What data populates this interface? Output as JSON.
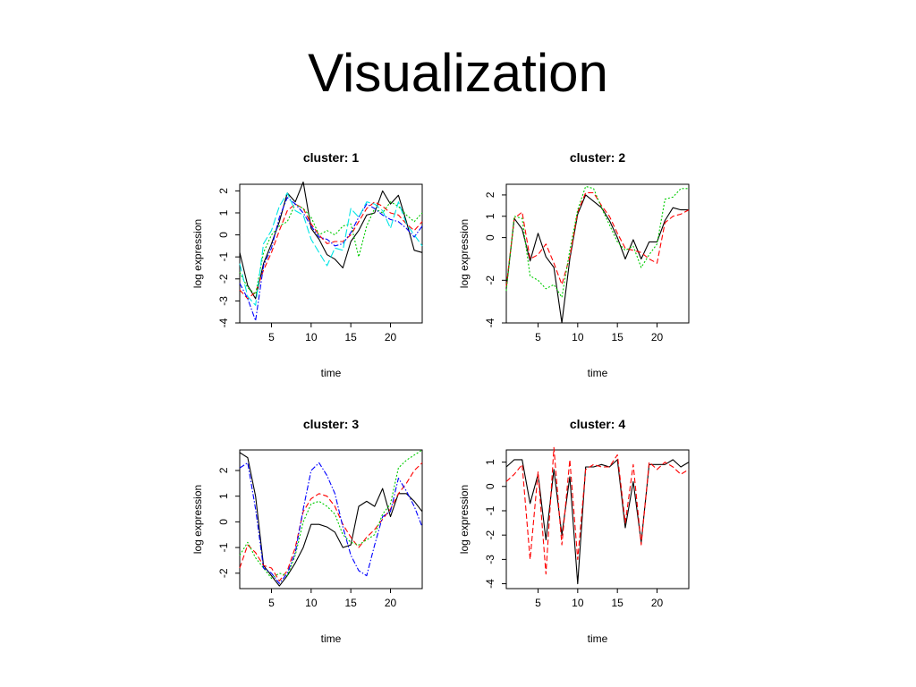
{
  "slide": {
    "title": "Visualization"
  },
  "chart_data": [
    {
      "type": "line",
      "title": "cluster: 1",
      "xlabel": "time",
      "ylabel": "log expression",
      "xlim": [
        1,
        24
      ],
      "ylim": [
        -4,
        2.3
      ],
      "xticks": [
        5,
        10,
        15,
        20
      ],
      "yticks": [
        -4,
        -3,
        -2,
        -1,
        0,
        1,
        2
      ],
      "x": [
        1,
        2,
        3,
        4,
        5,
        6,
        7,
        8,
        9,
        10,
        11,
        12,
        13,
        14,
        15,
        16,
        17,
        18,
        19,
        20,
        21,
        22,
        23,
        24
      ],
      "series": [
        {
          "color": "#000000",
          "dash": "solid",
          "values": [
            -0.8,
            -2.3,
            -2.9,
            -1.3,
            -0.4,
            0.6,
            1.9,
            1.5,
            2.4,
            0.3,
            -0.2,
            -0.9,
            -1.1,
            -1.5,
            -0.3,
            0.2,
            0.9,
            1.0,
            2.0,
            1.4,
            1.8,
            0.6,
            -0.7,
            -0.8
          ]
        },
        {
          "color": "#ff0000",
          "dash": "dashed",
          "values": [
            -2.5,
            -2.9,
            -2.6,
            -1.6,
            -0.8,
            0.2,
            1.1,
            1.4,
            1.2,
            0.5,
            0.0,
            -0.4,
            -0.3,
            -0.3,
            0.0,
            0.6,
            1.2,
            1.5,
            1.3,
            1.0,
            0.9,
            0.5,
            0.2,
            0.6
          ]
        },
        {
          "color": "#00cc00",
          "dash": "dotted",
          "values": [
            -1.7,
            -2.4,
            -2.7,
            -0.8,
            0.0,
            0.4,
            0.6,
            1.4,
            1.2,
            0.8,
            0.0,
            0.2,
            0.0,
            0.4,
            0.5,
            -1.0,
            0.4,
            1.2,
            1.0,
            1.5,
            1.3,
            0.9,
            0.6,
            1.0
          ]
        },
        {
          "color": "#0000ff",
          "dash": "dashdot",
          "values": [
            -2.2,
            -2.9,
            -3.9,
            -1.4,
            -0.6,
            0.8,
            1.7,
            1.4,
            1.0,
            0.4,
            -0.1,
            -0.2,
            -0.5,
            -0.4,
            0.1,
            0.8,
            1.4,
            1.2,
            0.9,
            0.7,
            0.6,
            0.3,
            -0.1,
            0.4
          ]
        },
        {
          "color": "#00e5e5",
          "dash": "longdash",
          "values": [
            -1.3,
            -2.8,
            -3.2,
            -0.4,
            0.2,
            1.3,
            1.9,
            1.1,
            0.9,
            -0.2,
            -0.8,
            -1.4,
            -0.6,
            -0.7,
            1.2,
            0.8,
            1.5,
            1.4,
            1.1,
            0.3,
            1.5,
            0.5,
            0.0,
            -0.5
          ]
        }
      ]
    },
    {
      "type": "line",
      "title": "cluster: 2",
      "xlabel": "time",
      "ylabel": "log expression",
      "xlim": [
        1,
        24
      ],
      "ylim": [
        -4,
        2.5
      ],
      "xticks": [
        5,
        10,
        15,
        20
      ],
      "yticks": [
        -4,
        -2,
        0,
        1,
        2
      ],
      "x": [
        1,
        2,
        3,
        4,
        5,
        6,
        7,
        8,
        9,
        10,
        11,
        12,
        13,
        14,
        15,
        16,
        17,
        18,
        19,
        20,
        21,
        22,
        23,
        24
      ],
      "series": [
        {
          "color": "#000000",
          "dash": "solid",
          "values": [
            -2.4,
            0.9,
            0.4,
            -1.1,
            0.2,
            -0.9,
            -1.4,
            -4.0,
            -1.0,
            1.1,
            2.0,
            1.7,
            1.4,
            0.8,
            0.0,
            -1.0,
            -0.1,
            -1.0,
            -0.2,
            -0.2,
            0.8,
            1.4,
            1.3,
            1.3
          ]
        },
        {
          "color": "#ff0000",
          "dash": "dashed",
          "values": [
            -2.3,
            0.9,
            1.2,
            -1.0,
            -0.8,
            -0.3,
            -1.2,
            -2.2,
            -0.9,
            1.2,
            2.1,
            2.1,
            1.5,
            1.0,
            0.2,
            -0.5,
            -0.6,
            -0.7,
            -1.0,
            -1.2,
            0.7,
            1.0,
            1.1,
            1.3
          ]
        },
        {
          "color": "#00cc00",
          "dash": "dotted",
          "values": [
            -2.5,
            1.0,
            0.9,
            -1.8,
            -2.0,
            -2.4,
            -2.2,
            -2.8,
            -0.6,
            1.3,
            2.4,
            2.3,
            1.4,
            0.6,
            -0.2,
            -0.6,
            -0.4,
            -1.4,
            -0.8,
            -0.3,
            1.8,
            1.9,
            2.3,
            2.3
          ]
        }
      ]
    },
    {
      "type": "line",
      "title": "cluster: 3",
      "xlabel": "time",
      "ylabel": "log expression",
      "xlim": [
        1,
        24
      ],
      "ylim": [
        -2.6,
        2.8
      ],
      "xticks": [
        5,
        10,
        15,
        20
      ],
      "yticks": [
        -2,
        -1,
        0,
        1,
        2
      ],
      "x": [
        1,
        2,
        3,
        4,
        5,
        6,
        7,
        8,
        9,
        10,
        11,
        12,
        13,
        14,
        15,
        16,
        17,
        18,
        19,
        20,
        21,
        22,
        23,
        24
      ],
      "series": [
        {
          "color": "#000000",
          "dash": "solid",
          "values": [
            2.7,
            2.5,
            1.0,
            -1.7,
            -2.1,
            -2.5,
            -2.1,
            -1.6,
            -1.0,
            -0.1,
            -0.1,
            -0.2,
            -0.4,
            -1.0,
            -0.9,
            0.6,
            0.8,
            0.6,
            1.3,
            0.2,
            1.1,
            1.1,
            0.8,
            0.4
          ]
        },
        {
          "color": "#ff0000",
          "dash": "dashed",
          "values": [
            -1.8,
            -0.9,
            -1.2,
            -1.7,
            -1.8,
            -2.3,
            -1.9,
            -1.0,
            0.4,
            0.9,
            1.1,
            1.0,
            0.6,
            -0.1,
            -0.6,
            -1.0,
            -0.6,
            -0.3,
            0.1,
            0.5,
            1.1,
            1.5,
            2.0,
            2.3
          ]
        },
        {
          "color": "#00cc00",
          "dash": "dotted",
          "values": [
            -1.3,
            -0.8,
            -1.4,
            -1.8,
            -2.2,
            -2.0,
            -2.1,
            -1.3,
            0.0,
            0.7,
            0.8,
            0.6,
            0.3,
            -0.5,
            -0.8,
            -0.9,
            -0.7,
            -0.5,
            0.3,
            0.7,
            2.1,
            2.4,
            2.6,
            2.8
          ]
        },
        {
          "color": "#0000ff",
          "dash": "dashdot",
          "values": [
            2.1,
            2.3,
            0.5,
            -1.8,
            -2.0,
            -2.4,
            -2.0,
            -1.2,
            0.5,
            2.0,
            2.3,
            1.8,
            1.1,
            -0.2,
            -1.3,
            -1.9,
            -2.1,
            -0.9,
            0.2,
            0.4,
            1.7,
            1.2,
            0.6,
            -0.2
          ]
        }
      ]
    },
    {
      "type": "line",
      "title": "cluster: 4",
      "xlabel": "time",
      "ylabel": "log expression",
      "xlim": [
        1,
        24
      ],
      "ylim": [
        -4.2,
        1.5
      ],
      "xticks": [
        5,
        10,
        15,
        20
      ],
      "yticks": [
        -4,
        -3,
        -2,
        -1,
        0,
        1
      ],
      "x": [
        1,
        2,
        3,
        4,
        5,
        6,
        7,
        8,
        9,
        10,
        11,
        12,
        13,
        14,
        15,
        16,
        17,
        18,
        19,
        20,
        21,
        22,
        23,
        24
      ],
      "series": [
        {
          "color": "#000000",
          "dash": "solid",
          "values": [
            0.8,
            1.1,
            1.1,
            -0.7,
            0.5,
            -2.2,
            0.7,
            -2.0,
            0.4,
            -4.0,
            0.8,
            0.8,
            0.9,
            0.8,
            1.1,
            -1.7,
            0.2,
            -2.3,
            0.9,
            0.9,
            0.9,
            1.1,
            0.8,
            1.0
          ]
        },
        {
          "color": "#ff0000",
          "dash": "dashed",
          "values": [
            0.2,
            0.5,
            0.9,
            -3.0,
            0.6,
            -3.6,
            1.6,
            -2.4,
            1.1,
            -3.0,
            0.7,
            0.9,
            0.8,
            0.8,
            1.3,
            -1.5,
            0.9,
            -2.4,
            1.0,
            0.7,
            1.0,
            0.8,
            0.5,
            0.7
          ]
        }
      ]
    }
  ]
}
